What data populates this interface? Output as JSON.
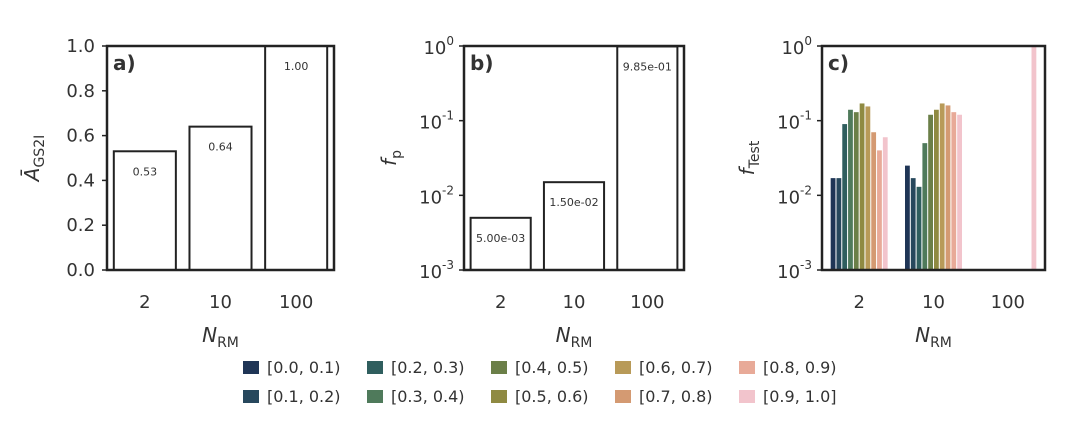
{
  "chart_data": [
    {
      "type": "bar",
      "panel_label": "a)",
      "ylabel": "Ā",
      "ylabel_sub": "GS2I",
      "xlabel": "N",
      "xlabel_sub": "RM",
      "categories": [
        "2",
        "10",
        "100"
      ],
      "values": [
        0.53,
        0.64,
        1.0
      ],
      "bar_labels": [
        "0.53",
        "0.64",
        "1.00"
      ],
      "ylim": [
        0,
        1
      ],
      "yticks": [
        0.0,
        0.2,
        0.4,
        0.6,
        0.8,
        1.0
      ],
      "ytick_labels": [
        "0.0",
        "0.2",
        "0.4",
        "0.6",
        "0.8",
        "1.0"
      ],
      "scale": "linear"
    },
    {
      "type": "bar",
      "panel_label": "b)",
      "ylabel": "f",
      "ylabel_sub": "p",
      "xlabel": "N",
      "xlabel_sub": "RM",
      "categories": [
        "2",
        "10",
        "100"
      ],
      "values": [
        0.005,
        0.015,
        0.985
      ],
      "bar_labels": [
        "5.00e-03",
        "1.50e-02",
        "9.85e-01"
      ],
      "ylim": [
        0.001,
        1
      ],
      "yticks": [
        0.001,
        0.01,
        0.1,
        1
      ],
      "ytick_labels": [
        [
          "10",
          "-3"
        ],
        [
          "10",
          "-2"
        ],
        [
          "10",
          "-1"
        ],
        [
          "10",
          "0"
        ]
      ],
      "scale": "log"
    },
    {
      "type": "bar",
      "panel_label": "c)",
      "ylabel": "f",
      "ylabel_sub": "Test",
      "xlabel": "N",
      "xlabel_sub": "RM",
      "categories": [
        "2",
        "10",
        "100"
      ],
      "ylim": [
        0.001,
        1
      ],
      "yticks": [
        0.001,
        0.01,
        0.1,
        1
      ],
      "ytick_labels": [
        [
          "10",
          "-3"
        ],
        [
          "10",
          "-2"
        ],
        [
          "10",
          "-1"
        ],
        [
          "10",
          "0"
        ]
      ],
      "scale": "log",
      "series": [
        {
          "name": "[0.0, 0.1)",
          "color": "#1f3556",
          "values": [
            0.017,
            0.025,
            null
          ]
        },
        {
          "name": "[0.1, 0.2)",
          "color": "#27485d",
          "values": [
            0.017,
            0.017,
            null
          ]
        },
        {
          "name": "[0.2, 0.3)",
          "color": "#2f5e5e",
          "values": [
            0.09,
            0.013,
            null
          ]
        },
        {
          "name": "[0.3, 0.4)",
          "color": "#4f7a5b",
          "values": [
            0.14,
            0.05,
            null
          ]
        },
        {
          "name": "[0.4, 0.5)",
          "color": "#6b7f48",
          "values": [
            0.13,
            0.12,
            null
          ]
        },
        {
          "name": "[0.5, 0.6)",
          "color": "#8f8a42",
          "values": [
            0.17,
            0.14,
            null
          ]
        },
        {
          "name": "[0.6, 0.7)",
          "color": "#b89a58",
          "values": [
            0.155,
            0.17,
            null
          ]
        },
        {
          "name": "[0.7, 0.8)",
          "color": "#d49a72",
          "values": [
            0.07,
            0.16,
            null
          ]
        },
        {
          "name": "[0.8, 0.9)",
          "color": "#e8aa98",
          "values": [
            0.04,
            0.13,
            null
          ]
        },
        {
          "name": "[0.9, 1.0]",
          "color": "#f2c4cc",
          "values": [
            0.06,
            0.12,
            1.0
          ]
        }
      ]
    }
  ],
  "legend": {
    "entries": [
      {
        "label": "[0.0, 0.1)",
        "color": "#1f3556"
      },
      {
        "label": "[0.1, 0.2)",
        "color": "#27485d"
      },
      {
        "label": "[0.2, 0.3)",
        "color": "#2f5e5e"
      },
      {
        "label": "[0.3, 0.4)",
        "color": "#4f7a5b"
      },
      {
        "label": "[0.4, 0.5)",
        "color": "#6b7f48"
      },
      {
        "label": "[0.5, 0.6)",
        "color": "#8f8a42"
      },
      {
        "label": "[0.6, 0.7)",
        "color": "#b89a58"
      },
      {
        "label": "[0.7, 0.8)",
        "color": "#d49a72"
      },
      {
        "label": "[0.8, 0.9)",
        "color": "#e8aa98"
      },
      {
        "label": "[0.9, 1.0]",
        "color": "#f2c4cc"
      }
    ]
  }
}
